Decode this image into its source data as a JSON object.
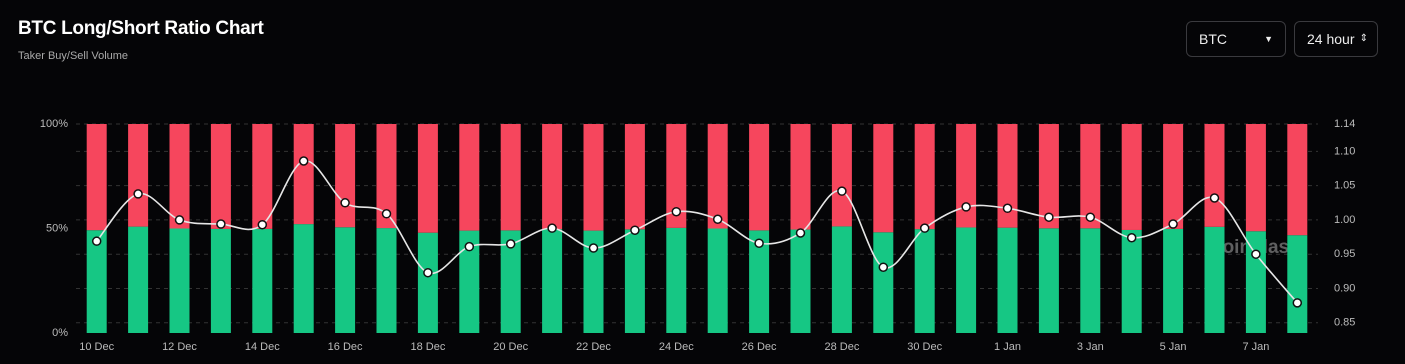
{
  "header": {
    "title": "BTC Long/Short Ratio Chart",
    "subtitle": "Taker Buy/Sell Volume"
  },
  "controls": {
    "symbol": "BTC",
    "interval": "24 hour"
  },
  "chart_data": {
    "type": "stacked-bar-line",
    "watermark": "coinglass",
    "categories": [
      "10 Dec",
      null,
      "12 Dec",
      null,
      "14 Dec",
      null,
      "16 Dec",
      null,
      "18 Dec",
      null,
      "20 Dec",
      null,
      "22 Dec",
      null,
      "24 Dec",
      null,
      "26 Dec",
      null,
      "28 Dec",
      null,
      "30 Dec",
      null,
      "1 Jan",
      null,
      "3 Jan",
      null,
      "5 Jan",
      null,
      "7 Jan",
      null
    ],
    "series": [
      {
        "color": "#16c784",
        "values": [
          49.2,
          50.9,
          50,
          49.8,
          49.8,
          52.1,
          50.6,
          50.2,
          48,
          49,
          49.1,
          49.7,
          49,
          49.6,
          50.3,
          50,
          49.1,
          49.5,
          51,
          48.2,
          49.7,
          50.5,
          50.4,
          50.1,
          50.1,
          49.3,
          49.8,
          50.8,
          48.7,
          46.8
        ]
      },
      {
        "color": "#f6465d",
        "values": [
          50.8,
          49.1,
          50,
          50.2,
          50.2,
          47.9,
          49.4,
          49.8,
          52,
          51,
          50.9,
          50.3,
          51,
          50.4,
          49.7,
          50,
          50.9,
          50.5,
          49,
          51.8,
          50.3,
          49.5,
          49.6,
          49.9,
          49.9,
          50.7,
          50.2,
          49.2,
          51.3,
          53.2
        ]
      },
      {
        "color": "#e6e6e6",
        "axis": "y2",
        "values": [
          0.969,
          1.038,
          1.0,
          0.994,
          0.993,
          1.086,
          1.025,
          1.009,
          0.923,
          0.961,
          0.965,
          0.988,
          0.959,
          0.985,
          1.012,
          1.001,
          0.966,
          0.981,
          1.042,
          0.931,
          0.988,
          1.019,
          1.017,
          1.004,
          1.004,
          0.974,
          0.994,
          1.032,
          0.95,
          0.879
        ]
      }
    ],
    "ylim": [
      0,
      100
    ],
    "yticks": [
      {
        "value": 0,
        "label": "0%"
      },
      {
        "value": 50,
        "label": "50%"
      },
      {
        "value": 100,
        "label": "100%"
      }
    ],
    "y2lim": [
      0.835,
      1.14
    ],
    "y2ticks": [
      {
        "value": 0.85,
        "label": "0.85"
      },
      {
        "value": 0.9,
        "label": "0.90"
      },
      0.95,
      {
        "value": 1,
        "label": "1.00"
      },
      1.05,
      {
        "value": 1.1,
        "label": "1.10"
      },
      1.14
    ],
    "grid": true
  }
}
